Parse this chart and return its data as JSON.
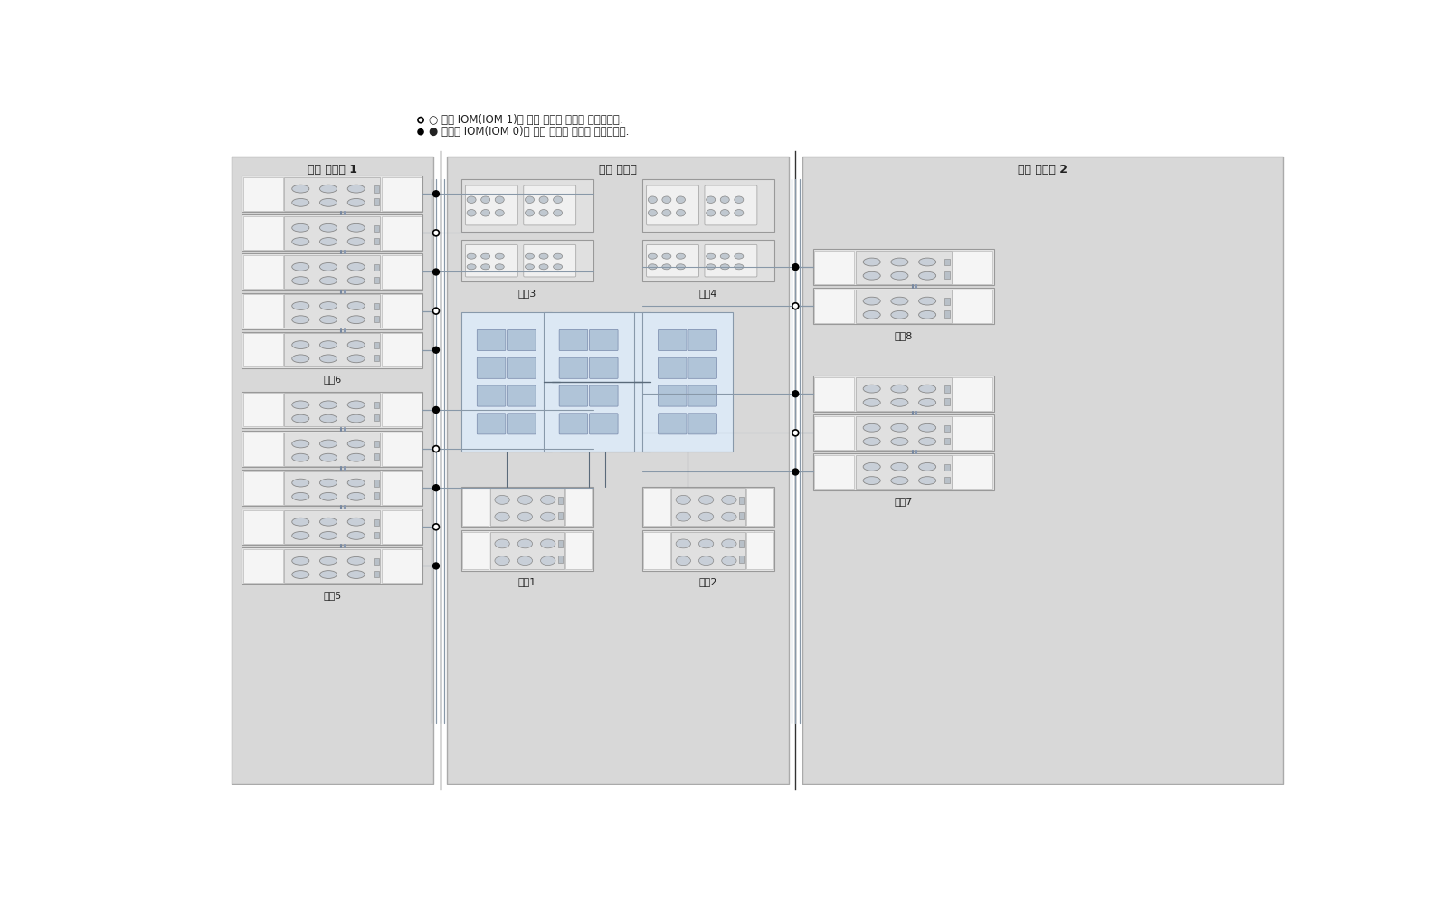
{
  "legend_text_1": "○ 위쪽 IOM(IOM 1)에 대한 케이블 연결을 나타냅니다.",
  "legend_text_2": "● 아래쪽 IOM(IOM 0)에 대한 케이블 연결을 나타냅니다.",
  "cabinet_left_label": "확장 캐비닛 1",
  "cabinet_center_label": "기본 캐비닛",
  "cabinet_right_label": "확장 캐비닛 2",
  "chain_labels": {
    "chain1": "체인1",
    "chain2": "체인2",
    "chain3": "체인3",
    "chain4": "체인4",
    "chain5": "체인5",
    "chain6": "체인6",
    "chain7": "체인7",
    "chain8": "체인8"
  },
  "cab_fill": "#d8d8d8",
  "shelf_fill": "#e8e8e8",
  "shelf_edge": "#999999",
  "drive_fill": "#f0f0f0",
  "drive_edge": "#aaaaaa",
  "iom_fill": "#c8cfd8",
  "iom_edge": "#888888",
  "port_fill": "#a0a8b0",
  "cable_color": "#8898a8",
  "cable_dark": "#5a6a7a",
  "hba_fill": "#ccdaec",
  "hba_edge": "#8899aa",
  "conn_fill": "#000000",
  "conn_empty": "#ffffff",
  "divider_color": "#333333",
  "text_color": "#222222",
  "bg_white": "#ffffff"
}
